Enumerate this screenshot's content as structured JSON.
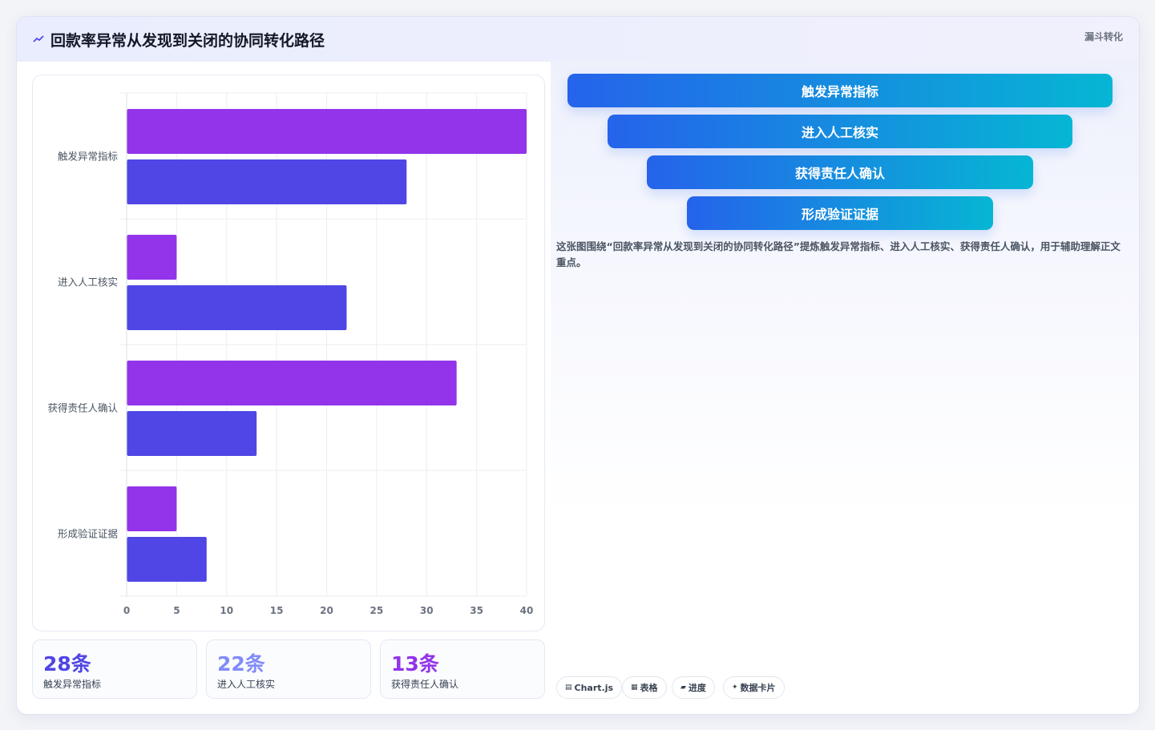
{
  "header": {
    "title": "回款率异常从发现到关闭的协同转化路径",
    "tag": "漏斗转化",
    "icon": "trend-icon"
  },
  "chart_data": {
    "type": "bar",
    "orientation": "horizontal",
    "categories": [
      "触发异常指标",
      "进入人工核实",
      "获得责任人确认",
      "形成验证证据"
    ],
    "series": [
      {
        "values": [
          40,
          5,
          33,
          5
        ],
        "color": "#9333ea"
      },
      {
        "values": [
          28,
          22,
          13,
          8
        ],
        "color": "#4f46e5"
      }
    ],
    "xlim": [
      0,
      40
    ],
    "xticks": [
      0,
      5,
      10,
      15,
      20,
      25,
      30,
      35,
      40
    ],
    "grid": true,
    "legend": "none"
  },
  "stats": [
    {
      "value": "28条",
      "label": "触发异常指标",
      "color": "#4f46e5"
    },
    {
      "value": "22条",
      "label": "进入人工核实",
      "color": "#818cf8"
    },
    {
      "value": "13条",
      "label": "获得责任人确认",
      "color": "#9333ea"
    }
  ],
  "funnel": [
    {
      "label": "触发异常指标"
    },
    {
      "label": "进入人工核实"
    },
    {
      "label": "获得责任人确认"
    },
    {
      "label": "形成验证证据"
    }
  ],
  "summary": "这张图围绕“回款率异常从发现到关闭的协同转化路径”提炼触发异常指标、进入人工核实、获得责任人确认，用于辅助理解正文重点。",
  "chips": [
    {
      "label": "Chart.js",
      "icon": "chart-icon"
    },
    {
      "label": "表格",
      "icon": "table-icon"
    },
    {
      "label": "进度",
      "icon": "progress-icon"
    },
    {
      "label": "数据卡片",
      "icon": "sparkle-icon"
    }
  ]
}
